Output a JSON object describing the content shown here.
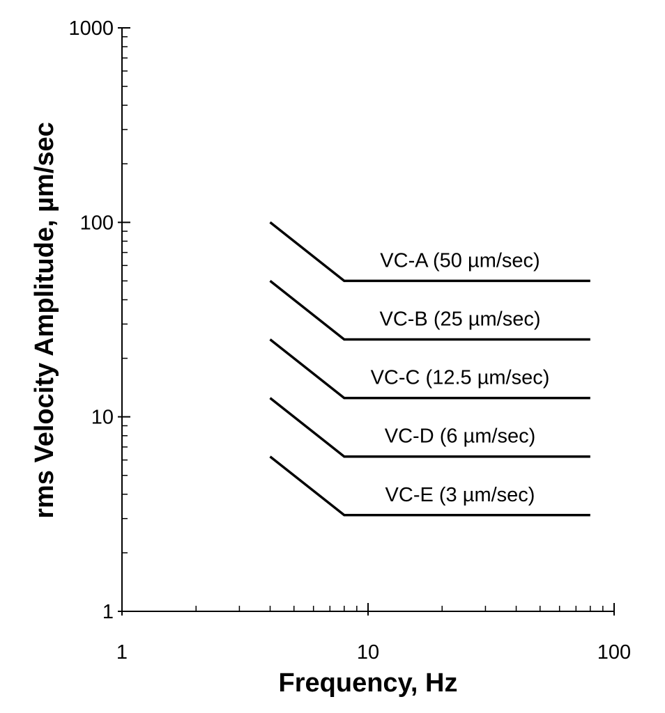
{
  "chart_data": {
    "type": "line",
    "xlabel": "Frequency, Hz",
    "ylabel": "rms Velocity Amplitude,   µm/sec",
    "x": [
      4,
      8,
      80
    ],
    "series": [
      {
        "name": "VC-A (50 µm/sec)",
        "color": "#000000",
        "values": [
          100,
          50,
          50
        ]
      },
      {
        "name": "VC-B (25 µm/sec)",
        "color": "#000000",
        "values": [
          50,
          25,
          25
        ]
      },
      {
        "name": "VC-C (12.5 µm/sec)",
        "color": "#000000",
        "values": [
          25,
          12.5,
          12.5
        ]
      },
      {
        "name": "VC-D (6 µm/sec)",
        "color": "#000000",
        "values": [
          12.5,
          6.25,
          6.25
        ]
      },
      {
        "name": "VC-E (3 µm/sec)",
        "color": "#000000",
        "values": [
          6.25,
          3.125,
          3.125
        ]
      }
    ],
    "xlim": [
      1,
      100
    ],
    "ylim": [
      1,
      1000
    ],
    "xticks": [
      1,
      10,
      100
    ],
    "yticks": [
      1,
      10,
      100,
      1000
    ],
    "xscale": "log",
    "yscale": "log",
    "grid": false
  }
}
